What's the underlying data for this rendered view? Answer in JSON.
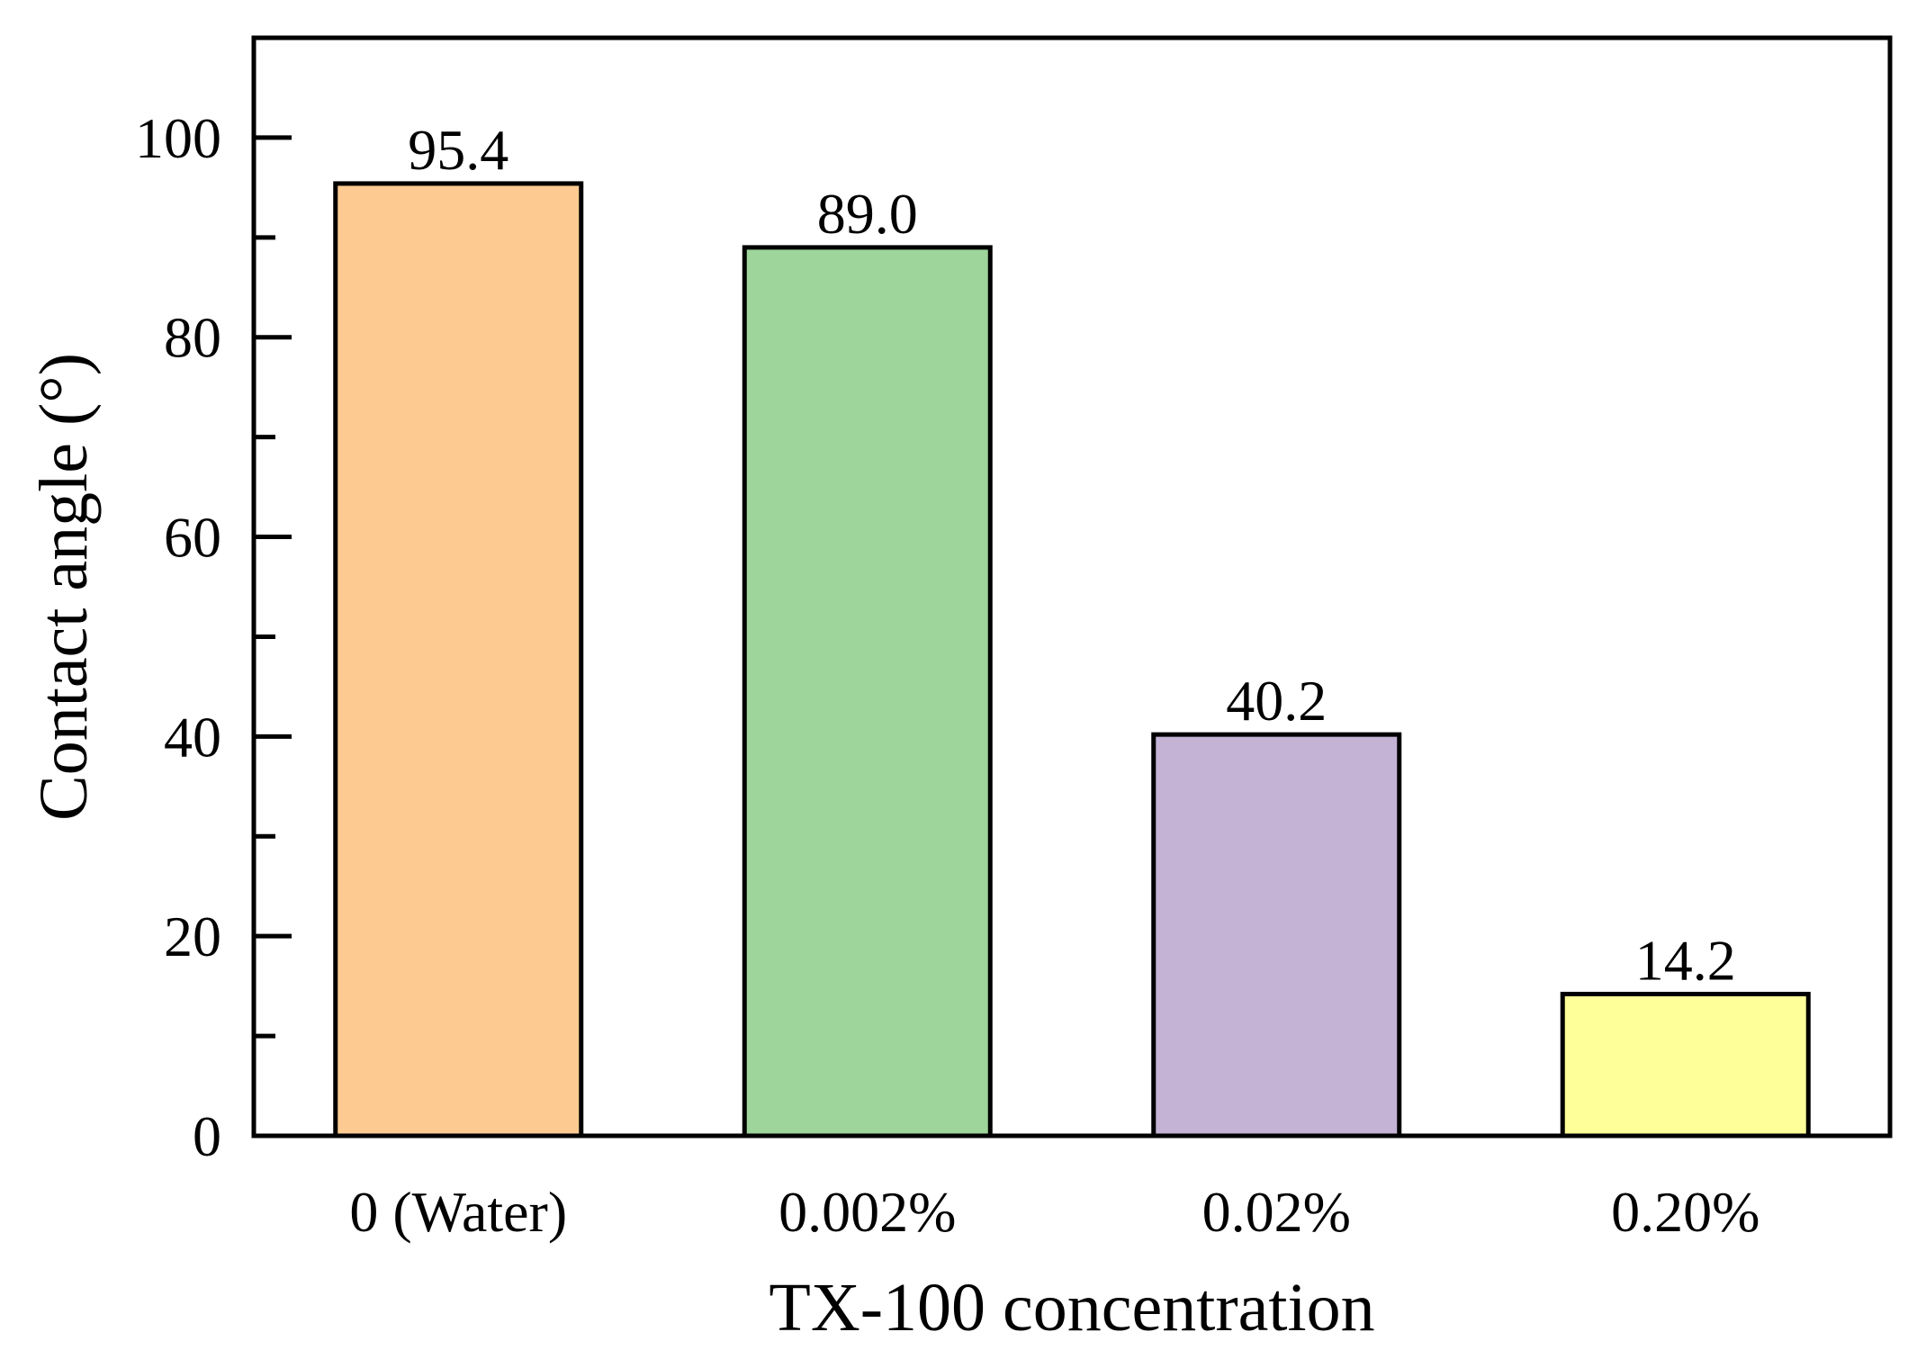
{
  "chart_data": {
    "type": "bar",
    "title": "",
    "xlabel": "TX-100 concentration",
    "ylabel": "Contact angle (°)",
    "categories": [
      "0 (Water)",
      "0.002%",
      "0.02%",
      "0.20%"
    ],
    "values": [
      95.4,
      89.0,
      40.2,
      14.2
    ],
    "value_labels": [
      "95.4",
      "89.0",
      "40.2",
      "14.2"
    ],
    "colors": [
      "#FDCB92",
      "#9ED59B",
      "#C4B3D5",
      "#FFFF99"
    ],
    "ylim": [
      0,
      110
    ],
    "yticks": [
      0,
      20,
      40,
      60,
      80,
      100
    ],
    "y_minor_step": 10,
    "grid": false,
    "legend": "none"
  }
}
